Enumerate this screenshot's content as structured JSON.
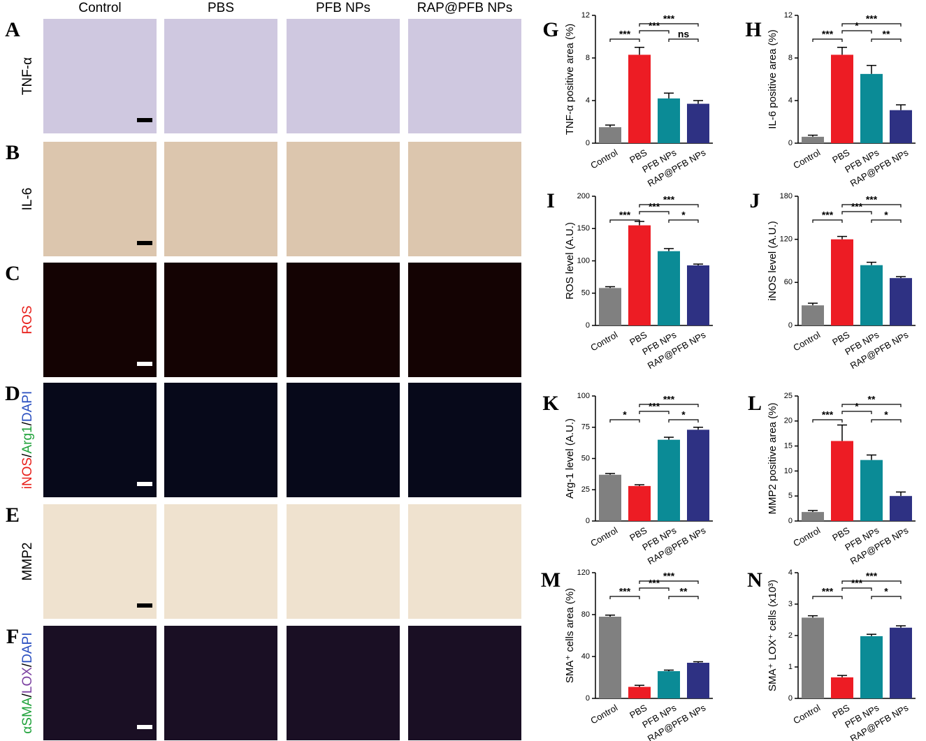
{
  "figure": {
    "columns": [
      "Control",
      "PBS",
      "PFB NPs",
      "RAP@PFB NPs"
    ],
    "rows": [
      {
        "letter": "A",
        "label": [
          {
            "text": "TNF-α",
            "color": "#000000"
          }
        ],
        "tone": "#cfc8e0",
        "scale": "#000000"
      },
      {
        "letter": "B",
        "label": [
          {
            "text": "IL-6",
            "color": "#000000"
          }
        ],
        "tone": "#dcc6ae",
        "scale": "#000000"
      },
      {
        "letter": "C",
        "label": [
          {
            "text": "ROS",
            "color": "#e8201b"
          }
        ],
        "tone": "#140303",
        "scale": "#ffffff"
      },
      {
        "letter": "D",
        "label": [
          {
            "text": "iNOS",
            "color": "#e8201b"
          },
          {
            "text": "/",
            "color": "#000000"
          },
          {
            "text": "Arg1",
            "color": "#1fa23a"
          },
          {
            "text": "/",
            "color": "#000000"
          },
          {
            "text": "DAPI",
            "color": "#2a4fc0"
          }
        ],
        "tone": "#07091a",
        "scale": "#ffffff"
      },
      {
        "letter": "E",
        "label": [
          {
            "text": "MMP2",
            "color": "#000000"
          }
        ],
        "tone": "#efe2cf",
        "scale": "#000000"
      },
      {
        "letter": "F",
        "label": [
          {
            "text": "αSMA",
            "color": "#1fa23a"
          },
          {
            "text": "/",
            "color": "#000000"
          },
          {
            "text": "LOX",
            "color": "#7a3fa0"
          },
          {
            "text": "/",
            "color": "#000000"
          },
          {
            "text": "DAPI",
            "color": "#2a4fc0"
          }
        ],
        "tone": "#1a0f24",
        "scale": "#ffffff"
      }
    ]
  },
  "chart_data": [
    {
      "type": "bar",
      "panel": "G",
      "ylabel": "TNF-α positive area (%)",
      "categories": [
        "Control",
        "PBS",
        "PFB NPs",
        "RAP@PFB NPs"
      ],
      "colors": [
        "#808080",
        "#ed1c24",
        "#0b8b96",
        "#2e3183"
      ],
      "values": [
        1.5,
        8.3,
        4.2,
        3.7
      ],
      "errors": [
        0.2,
        0.7,
        0.5,
        0.3
      ],
      "ylim": [
        0,
        12
      ],
      "yticks": [
        0,
        4,
        8,
        12
      ],
      "significance": [
        {
          "between": [
            "Control",
            "PBS"
          ],
          "label": "***"
        },
        {
          "between": [
            "PBS",
            "PFB NPs"
          ],
          "label": "***"
        },
        {
          "between": [
            "PBS",
            "RAP@PFB NPs"
          ],
          "label": "***"
        },
        {
          "between": [
            "PFB NPs",
            "RAP@PFB NPs"
          ],
          "label": "ns"
        }
      ]
    },
    {
      "type": "bar",
      "panel": "H",
      "ylabel": "IL-6 positive area (%)",
      "categories": [
        "Control",
        "PBS",
        "PFB NPs",
        "RAP@PFB NPs"
      ],
      "colors": [
        "#808080",
        "#ed1c24",
        "#0b8b96",
        "#2e3183"
      ],
      "values": [
        0.6,
        8.3,
        6.5,
        3.1
      ],
      "errors": [
        0.15,
        0.7,
        0.8,
        0.5
      ],
      "ylim": [
        0,
        12
      ],
      "yticks": [
        0,
        4,
        8,
        12
      ],
      "significance": [
        {
          "between": [
            "Control",
            "PBS"
          ],
          "label": "***"
        },
        {
          "between": [
            "PBS",
            "PFB NPs"
          ],
          "label": "*"
        },
        {
          "between": [
            "PBS",
            "RAP@PFB NPs"
          ],
          "label": "***"
        },
        {
          "between": [
            "PFB NPs",
            "RAP@PFB NPs"
          ],
          "label": "**"
        }
      ]
    },
    {
      "type": "bar",
      "panel": "I",
      "ylabel": "ROS level (A.U.)",
      "categories": [
        "Control",
        "PBS",
        "PFB NPs",
        "RAP@PFB NPs"
      ],
      "colors": [
        "#808080",
        "#ed1c24",
        "#0b8b96",
        "#2e3183"
      ],
      "values": [
        58,
        155,
        115,
        93
      ],
      "errors": [
        2,
        6,
        4,
        2
      ],
      "ylim": [
        0,
        200
      ],
      "yticks": [
        0,
        50,
        100,
        150,
        200
      ],
      "significance": [
        {
          "between": [
            "Control",
            "PBS"
          ],
          "label": "***"
        },
        {
          "between": [
            "PBS",
            "PFB NPs"
          ],
          "label": "***"
        },
        {
          "between": [
            "PBS",
            "RAP@PFB NPs"
          ],
          "label": "***"
        },
        {
          "between": [
            "PFB NPs",
            "RAP@PFB NPs"
          ],
          "label": "*"
        }
      ]
    },
    {
      "type": "bar",
      "panel": "J",
      "ylabel": "iNOS level (A.U.)",
      "categories": [
        "Control",
        "PBS",
        "PFB NPs",
        "RAP@PFB NPs"
      ],
      "colors": [
        "#808080",
        "#ed1c24",
        "#0b8b96",
        "#2e3183"
      ],
      "values": [
        28,
        120,
        84,
        66
      ],
      "errors": [
        3,
        4,
        4,
        2
      ],
      "ylim": [
        0,
        180
      ],
      "yticks": [
        0,
        60,
        120,
        180
      ],
      "significance": [
        {
          "between": [
            "Control",
            "PBS"
          ],
          "label": "***"
        },
        {
          "between": [
            "PBS",
            "PFB NPs"
          ],
          "label": "***"
        },
        {
          "between": [
            "PBS",
            "RAP@PFB NPs"
          ],
          "label": "***"
        },
        {
          "between": [
            "PFB NPs",
            "RAP@PFB NPs"
          ],
          "label": "*"
        }
      ]
    },
    {
      "type": "bar",
      "panel": "K",
      "ylabel": "Arg-1 level (A.U.)",
      "categories": [
        "Control",
        "PBS",
        "PFB NPs",
        "RAP@PFB NPs"
      ],
      "colors": [
        "#808080",
        "#ed1c24",
        "#0b8b96",
        "#2e3183"
      ],
      "values": [
        37,
        28,
        65,
        73
      ],
      "errors": [
        1,
        1,
        2,
        2
      ],
      "ylim": [
        0,
        100
      ],
      "yticks": [
        0,
        25,
        50,
        75,
        100
      ],
      "significance": [
        {
          "between": [
            "Control",
            "PBS"
          ],
          "label": "*"
        },
        {
          "between": [
            "PBS",
            "PFB NPs"
          ],
          "label": "***"
        },
        {
          "between": [
            "PBS",
            "RAP@PFB NPs"
          ],
          "label": "***"
        },
        {
          "between": [
            "PFB NPs",
            "RAP@PFB NPs"
          ],
          "label": "*"
        }
      ]
    },
    {
      "type": "bar",
      "panel": "L",
      "ylabel": "MMP2 positive area (%)",
      "categories": [
        "Control",
        "PBS",
        "PFB NPs",
        "RAP@PFB NPs"
      ],
      "colors": [
        "#808080",
        "#ed1c24",
        "#0b8b96",
        "#2e3183"
      ],
      "values": [
        1.8,
        16,
        12.2,
        5
      ],
      "errors": [
        0.3,
        3.2,
        1,
        0.8
      ],
      "ylim": [
        0,
        25
      ],
      "yticks": [
        0,
        5,
        10,
        15,
        20,
        25
      ],
      "significance": [
        {
          "between": [
            "Control",
            "PBS"
          ],
          "label": "***"
        },
        {
          "between": [
            "PBS",
            "PFB NPs"
          ],
          "label": "*"
        },
        {
          "between": [
            "PBS",
            "RAP@PFB NPs"
          ],
          "label": "**"
        },
        {
          "between": [
            "PFB NPs",
            "RAP@PFB NPs"
          ],
          "label": "*"
        }
      ]
    },
    {
      "type": "bar",
      "panel": "M",
      "ylabel": "SMA⁺ cells area (%)",
      "categories": [
        "Control",
        "PBS",
        "PFB NPs",
        "RAP@PFB NPs"
      ],
      "colors": [
        "#808080",
        "#ed1c24",
        "#0b8b96",
        "#2e3183"
      ],
      "values": [
        78,
        11,
        26,
        34
      ],
      "errors": [
        1.5,
        1.5,
        1,
        1
      ],
      "ylim": [
        0,
        120
      ],
      "yticks": [
        0,
        40,
        80,
        120
      ],
      "significance": [
        {
          "between": [
            "Control",
            "PBS"
          ],
          "label": "***"
        },
        {
          "between": [
            "PBS",
            "PFB NPs"
          ],
          "label": "***"
        },
        {
          "between": [
            "PBS",
            "RAP@PFB NPs"
          ],
          "label": "***"
        },
        {
          "between": [
            "PFB NPs",
            "RAP@PFB NPs"
          ],
          "label": "**"
        }
      ]
    },
    {
      "type": "bar",
      "panel": "N",
      "ylabel": "SMA⁺ LOX⁺ cells (x10³)",
      "categories": [
        "Control",
        "PBS",
        "PFB NPs",
        "RAP@PFB NPs"
      ],
      "colors": [
        "#808080",
        "#ed1c24",
        "#0b8b96",
        "#2e3183"
      ],
      "values": [
        2.57,
        0.67,
        1.98,
        2.25
      ],
      "errors": [
        0.06,
        0.06,
        0.06,
        0.06
      ],
      "ylim": [
        0,
        4
      ],
      "yticks": [
        0,
        1,
        2,
        3,
        4
      ],
      "significance": [
        {
          "between": [
            "Control",
            "PBS"
          ],
          "label": "***"
        },
        {
          "between": [
            "PBS",
            "PFB NPs"
          ],
          "label": "***"
        },
        {
          "between": [
            "PBS",
            "RAP@PFB NPs"
          ],
          "label": "***"
        },
        {
          "between": [
            "PFB NPs",
            "RAP@PFB NPs"
          ],
          "label": "*"
        }
      ]
    }
  ]
}
